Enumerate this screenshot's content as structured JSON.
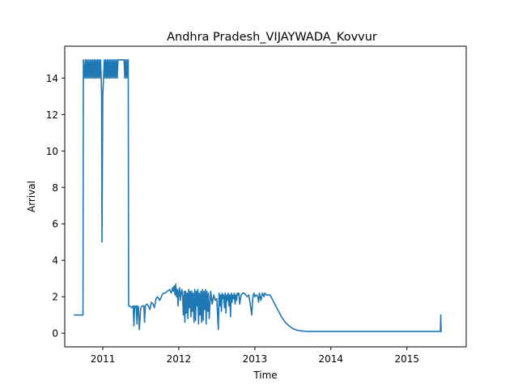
{
  "chart_data": {
    "type": "line",
    "title": "Andhra Pradesh_VIJAYWADA_Kovvur",
    "xlabel": "Time",
    "ylabel": "Arrival",
    "xlim": [
      2010.5,
      2015.78
    ],
    "ylim": [
      -0.75,
      15.75
    ],
    "xticks": [
      {
        "value": 2011,
        "label": "2011"
      },
      {
        "value": 2012,
        "label": "2012"
      },
      {
        "value": 2013,
        "label": "2013"
      },
      {
        "value": 2014,
        "label": "2014"
      },
      {
        "value": 2015,
        "label": "2015"
      }
    ],
    "yticks": [
      {
        "value": 0,
        "label": "0"
      },
      {
        "value": 2,
        "label": "2"
      },
      {
        "value": 4,
        "label": "4"
      },
      {
        "value": 6,
        "label": "6"
      },
      {
        "value": 8,
        "label": "8"
      },
      {
        "value": 10,
        "label": "10"
      },
      {
        "value": 12,
        "label": "12"
      },
      {
        "value": 14,
        "label": "14"
      }
    ],
    "grid": false,
    "color": "#1f77b4",
    "series": [
      {
        "x": [
          2010.62,
          2010.74,
          2010.745,
          2010.76,
          2010.77,
          2010.78,
          2010.79,
          2010.8,
          2010.81,
          2010.82,
          2010.83,
          2010.84,
          2010.85,
          2010.86,
          2010.87,
          2010.88,
          2010.89,
          2010.9,
          2010.91,
          2010.92,
          2010.93,
          2010.94,
          2010.95,
          2010.96,
          2010.97,
          2010.98,
          2010.985,
          2010.99,
          2011.0,
          2011.01,
          2011.02,
          2011.03,
          2011.04,
          2011.05,
          2011.06,
          2011.07,
          2011.08,
          2011.09,
          2011.1,
          2011.11,
          2011.12,
          2011.13,
          2011.14,
          2011.15,
          2011.16,
          2011.17,
          2011.18,
          2011.19,
          2011.2,
          2011.25,
          2011.28,
          2011.29,
          2011.3,
          2011.31,
          2011.32,
          2011.33,
          2011.335,
          2011.34,
          2011.35,
          2011.38,
          2011.4,
          2011.41,
          2011.42,
          2011.43,
          2011.44,
          2011.45,
          2011.46,
          2011.47,
          2011.48,
          2011.5,
          2011.52,
          2011.54,
          2011.55,
          2011.56,
          2011.58,
          2011.6,
          2011.62,
          2011.64,
          2011.66,
          2011.68,
          2011.7,
          2011.72,
          2011.75,
          2011.78,
          2011.8,
          2011.82,
          2011.85,
          2011.88,
          2011.9,
          2011.92,
          2011.93,
          2011.94,
          2011.95,
          2011.96,
          2011.97,
          2011.98,
          2011.99,
          2012.0,
          2012.01,
          2012.02,
          2012.03,
          2012.04,
          2012.05,
          2012.06,
          2012.07,
          2012.08,
          2012.09,
          2012.1,
          2012.11,
          2012.12,
          2012.13,
          2012.14,
          2012.15,
          2012.16,
          2012.17,
          2012.18,
          2012.19,
          2012.2,
          2012.21,
          2012.22,
          2012.23,
          2012.24,
          2012.25,
          2012.26,
          2012.27,
          2012.28,
          2012.29,
          2012.3,
          2012.31,
          2012.32,
          2012.33,
          2012.34,
          2012.35,
          2012.36,
          2012.37,
          2012.38,
          2012.39,
          2012.4,
          2012.42,
          2012.44,
          2012.46,
          2012.48,
          2012.5,
          2012.51,
          2012.52,
          2012.53,
          2012.54,
          2012.55,
          2012.56,
          2012.57,
          2012.58,
          2012.59,
          2012.6,
          2012.61,
          2012.62,
          2012.63,
          2012.64,
          2012.65,
          2012.66,
          2012.67,
          2012.68,
          2012.69,
          2012.7,
          2012.71,
          2012.72,
          2012.73,
          2012.74,
          2012.75,
          2012.76,
          2012.77,
          2012.78,
          2012.79,
          2012.8,
          2012.82,
          2012.84,
          2012.86,
          2012.88,
          2012.9,
          2012.92,
          2012.94,
          2012.96,
          2012.97,
          2012.98,
          2012.99,
          2013.0,
          2013.02,
          2013.04,
          2013.05,
          2013.06,
          2013.08,
          2013.1,
          2013.12,
          2013.13,
          2013.15,
          2013.2,
          2013.25,
          2013.3,
          2013.35,
          2013.4,
          2013.45,
          2013.5,
          2013.55,
          2013.6,
          2013.65,
          2013.7,
          2013.8,
          2014.0,
          2014.5,
          2015.0,
          2015.4,
          2015.44,
          2015.445,
          2015.45,
          2015.46
        ],
        "y": [
          1.0,
          1.0,
          15.0,
          14.0,
          15.0,
          14.0,
          15.0,
          14.0,
          15.0,
          14.0,
          15.0,
          14.0,
          15.0,
          14.0,
          15.0,
          14.0,
          15.0,
          14.0,
          15.0,
          14.0,
          15.0,
          14.0,
          15.0,
          14.0,
          15.0,
          14.0,
          13.0,
          5.0,
          13.0,
          14.0,
          15.0,
          14.0,
          15.0,
          14.0,
          15.0,
          14.0,
          15.0,
          14.0,
          15.0,
          14.0,
          15.0,
          14.0,
          15.0,
          14.0,
          15.0,
          14.0,
          15.0,
          14.0,
          15.0,
          15.0,
          15.0,
          14.0,
          15.0,
          14.0,
          15.0,
          14.0,
          15.0,
          1.5,
          1.5,
          1.4,
          1.5,
          0.4,
          1.5,
          1.4,
          1.5,
          0.5,
          1.5,
          1.4,
          0.2,
          1.4,
          1.5,
          1.5,
          0.6,
          1.5,
          1.6,
          1.5,
          1.3,
          1.7,
          1.6,
          1.4,
          1.9,
          2.0,
          1.8,
          2.1,
          2.2,
          2.2,
          2.3,
          2.4,
          2.2,
          2.5,
          2.3,
          2.6,
          2.1,
          2.7,
          2.0,
          2.4,
          1.5,
          2.3,
          2.5,
          1.8,
          2.2,
          2.4,
          2.0,
          1.0,
          2.3,
          0.6,
          2.3,
          1.1,
          2.2,
          0.8,
          2.4,
          1.4,
          2.3,
          0.9,
          2.3,
          1.2,
          2.2,
          0.6,
          2.4,
          0.7,
          2.3,
          1.5,
          2.4,
          0.5,
          2.2,
          1.0,
          2.3,
          0.6,
          2.4,
          0.7,
          2.3,
          1.3,
          2.4,
          0.5,
          2.3,
          1.2,
          2.2,
          0.8,
          2.3,
          1.6,
          2.1,
          1.8,
          1.9,
          1.0,
          0.2,
          2.2,
          1.5,
          2.1,
          1.2,
          2.2,
          1.9,
          2.1,
          1.4,
          2.2,
          1.1,
          2.1,
          1.8,
          2.2,
          1.5,
          2.1,
          0.9,
          2.2,
          1.7,
          2.1,
          1.9,
          2.2,
          1.6,
          2.1,
          1.8,
          2.2,
          2.1,
          2.2,
          1.6,
          2.1,
          2.2,
          2.2,
          2.1,
          2.0,
          2.1,
          1.6,
          1.0,
          1.8,
          2.1,
          2.2,
          2.0,
          2.1,
          2.0,
          1.7,
          2.2,
          1.8,
          2.2,
          2.0,
          2.2,
          2.1,
          2.1,
          1.7,
          1.3,
          0.9,
          0.6,
          0.4,
          0.25,
          0.17,
          0.13,
          0.11,
          0.1,
          0.1,
          0.1,
          0.1,
          0.1,
          0.1,
          0.1,
          1.0,
          0.1,
          0.1
        ]
      }
    ]
  }
}
